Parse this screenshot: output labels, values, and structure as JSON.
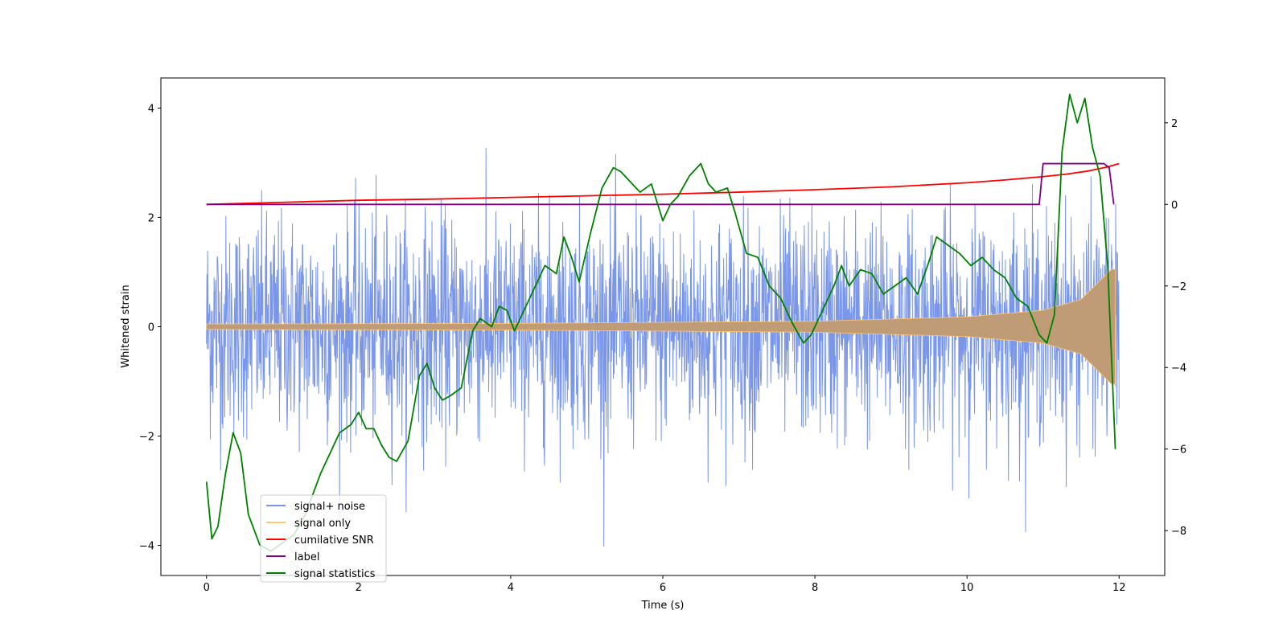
{
  "chart_data": {
    "type": "line",
    "title": "",
    "xlabel": "Time (s)",
    "ylabel": "Whitened strain",
    "y2label": "",
    "xlim": [
      -0.6,
      12.6
    ],
    "ylim": [
      -4.55,
      4.55
    ],
    "y2lim": [
      -9.1,
      3.1
    ],
    "x_ticks": [
      0,
      2,
      4,
      6,
      8,
      10,
      12
    ],
    "y_ticks": [
      -4,
      -2,
      0,
      2,
      4
    ],
    "y2_ticks": [
      -8,
      -6,
      -4,
      -2,
      0,
      2
    ],
    "legend_position": "lower left",
    "grid": false,
    "colors": {
      "signal_noise": "#7a96e8",
      "signal_only": "#ffc76f",
      "signal_fill": "#bf9c75",
      "snr": "#ff0000",
      "label": "#800080",
      "stats": "#008000"
    },
    "series": [
      {
        "name": "signal+ noise",
        "axis": "left",
        "description_of_values": "dense noise around 0 with amplitude mostly within [-2.5, 2.5], peaks to about ±4; sampled over x 0 to 12",
        "x_range": [
          0,
          12
        ],
        "amplitude": 1.0
      },
      {
        "name": "signal only",
        "axis": "left",
        "x_range": [
          0,
          11.95
        ],
        "envelope": [
          [
            0,
            0.05
          ],
          [
            4,
            0.06
          ],
          [
            8,
            0.1
          ],
          [
            10,
            0.18
          ],
          [
            11,
            0.3
          ],
          [
            11.5,
            0.5
          ],
          [
            11.9,
            1.05
          ]
        ]
      },
      {
        "name": "cumilative SNR",
        "axis": "right",
        "x": [
          0,
          1,
          2,
          3,
          4,
          5,
          6,
          7,
          8,
          9,
          10,
          10.5,
          11,
          11.3,
          11.6,
          11.85,
          12
        ],
        "values": [
          0.0,
          0.05,
          0.1,
          0.13,
          0.17,
          0.21,
          0.25,
          0.3,
          0.36,
          0.43,
          0.53,
          0.6,
          0.68,
          0.74,
          0.82,
          0.92,
          1.0
        ]
      },
      {
        "name": "label",
        "axis": "right",
        "x": [
          0,
          10.95,
          11.0,
          11.8,
          11.87,
          11.93
        ],
        "values": [
          0,
          0,
          1,
          1,
          0.9,
          0
        ]
      },
      {
        "name": "signal statistics",
        "axis": "right",
        "x": [
          0,
          0.07,
          0.15,
          0.25,
          0.35,
          0.45,
          0.55,
          0.7,
          0.85,
          1.0,
          1.15,
          1.3,
          1.5,
          1.6,
          1.75,
          1.9,
          2.0,
          2.1,
          2.2,
          2.3,
          2.4,
          2.5,
          2.65,
          2.8,
          2.9,
          3.0,
          3.1,
          3.2,
          3.35,
          3.5,
          3.6,
          3.75,
          3.85,
          3.95,
          4.05,
          4.15,
          4.3,
          4.45,
          4.6,
          4.7,
          4.8,
          4.9,
          5.05,
          5.2,
          5.35,
          5.45,
          5.55,
          5.7,
          5.85,
          6.0,
          6.1,
          6.2,
          6.35,
          6.5,
          6.6,
          6.7,
          6.85,
          6.95,
          7.1,
          7.25,
          7.4,
          7.55,
          7.7,
          7.85,
          7.95,
          8.1,
          8.25,
          8.35,
          8.45,
          8.6,
          8.75,
          8.9,
          9.05,
          9.2,
          9.35,
          9.5,
          9.6,
          9.75,
          9.9,
          10.05,
          10.2,
          10.35,
          10.5,
          10.65,
          10.8,
          10.95,
          11.05,
          11.15,
          11.25,
          11.35,
          11.45,
          11.55,
          11.65,
          11.75,
          11.85,
          11.95
        ],
        "values": [
          -6.8,
          -8.2,
          -7.9,
          -6.6,
          -5.6,
          -6.1,
          -7.6,
          -8.35,
          -8.5,
          -8.3,
          -8.1,
          -7.6,
          -6.6,
          -6.2,
          -5.6,
          -5.4,
          -5.1,
          -5.5,
          -5.5,
          -5.9,
          -6.2,
          -6.3,
          -5.8,
          -4.2,
          -3.9,
          -4.5,
          -4.8,
          -4.7,
          -4.5,
          -3.1,
          -2.8,
          -3.0,
          -2.5,
          -2.6,
          -3.1,
          -2.7,
          -2.1,
          -1.5,
          -1.7,
          -0.8,
          -1.3,
          -1.9,
          -0.7,
          0.4,
          0.9,
          0.8,
          0.6,
          0.3,
          0.5,
          -0.4,
          0.0,
          0.2,
          0.7,
          1.0,
          0.5,
          0.3,
          0.4,
          -0.2,
          -1.2,
          -1.3,
          -2.0,
          -2.3,
          -2.9,
          -3.4,
          -3.2,
          -2.6,
          -2.0,
          -1.5,
          -2.0,
          -1.6,
          -1.7,
          -2.2,
          -2.0,
          -1.8,
          -2.2,
          -1.4,
          -0.8,
          -1.0,
          -1.2,
          -1.5,
          -1.3,
          -1.6,
          -1.8,
          -2.3,
          -2.5,
          -3.2,
          -3.4,
          -2.7,
          1.3,
          2.7,
          2.0,
          2.6,
          1.4,
          0.7,
          -1.5,
          -6.0
        ]
      }
    ]
  }
}
